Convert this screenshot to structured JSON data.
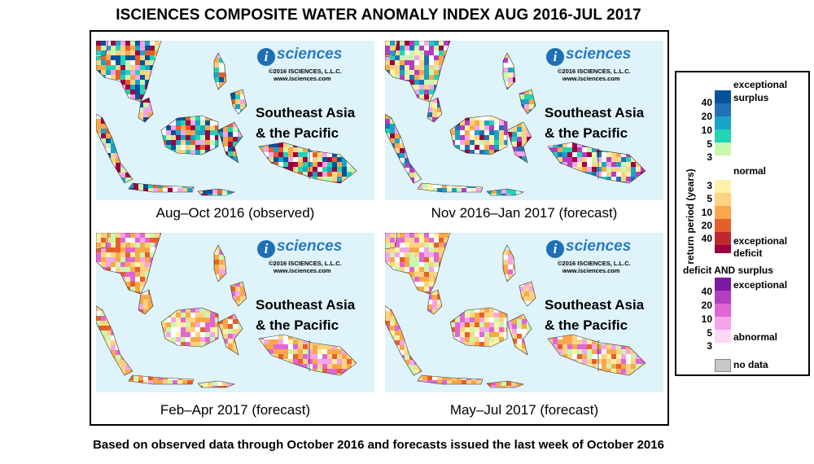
{
  "title": "ISCIENCES COMPOSITE WATER ANOMALY INDEX AUG 2016-JUL 2017",
  "footer": "Based on observed data through October 2016 and forecasts issued the last week of October 2016",
  "logo": {
    "i": "i",
    "brand": "sciences",
    "copyright": "©2016  ISCIENCES, L.L.C.",
    "url": "www.isciences.com"
  },
  "region": {
    "line1": "Southeast Asia",
    "line2": "& the Pacific"
  },
  "panels": [
    {
      "caption": "Aug–Oct 2016 (observed)",
      "pattern": "observed-mixed"
    },
    {
      "caption": "Nov 2016–Jan 2017 (forecast)",
      "pattern": "forecast-mixed"
    },
    {
      "caption": "Feb–Apr 2017 (forecast)",
      "pattern": "forecast-deficit"
    },
    {
      "caption": "May–Jul 2017 (forecast)",
      "pattern": "forecast-deficit"
    }
  ],
  "legend": {
    "axis_title": "return period (years)",
    "exceptional_surplus": [
      "exceptional",
      "surplus"
    ],
    "normal": "normal",
    "exceptional_deficit": [
      "exceptional",
      "deficit"
    ],
    "both_header": "deficit AND surplus",
    "both_exceptional": "exceptional",
    "both_abnormal": "abnormal",
    "no_data": "no data",
    "surplus_ticks": [
      "40",
      "20",
      "10",
      "5",
      "3"
    ],
    "deficit_ticks": [
      "3",
      "5",
      "10",
      "20",
      "40"
    ],
    "both_ticks": [
      "40",
      "20",
      "10",
      "5",
      "3"
    ],
    "colors": {
      "surplus": [
        "#08519c",
        "#2171b5",
        "#1ba3c6",
        "#20d4b4",
        "#c8f7b0"
      ],
      "normal": "#ffffff",
      "deficit": [
        "#fff2a8",
        "#fdd383",
        "#f8a84a",
        "#e4602a",
        "#c0282f",
        "#9b0041"
      ],
      "both": [
        "#7a1aa0",
        "#b23fc0",
        "#e066d6",
        "#f6a4ea",
        "#fbd9f4"
      ],
      "no_data": "#c8c8c8",
      "water": "#dff3fb"
    }
  }
}
